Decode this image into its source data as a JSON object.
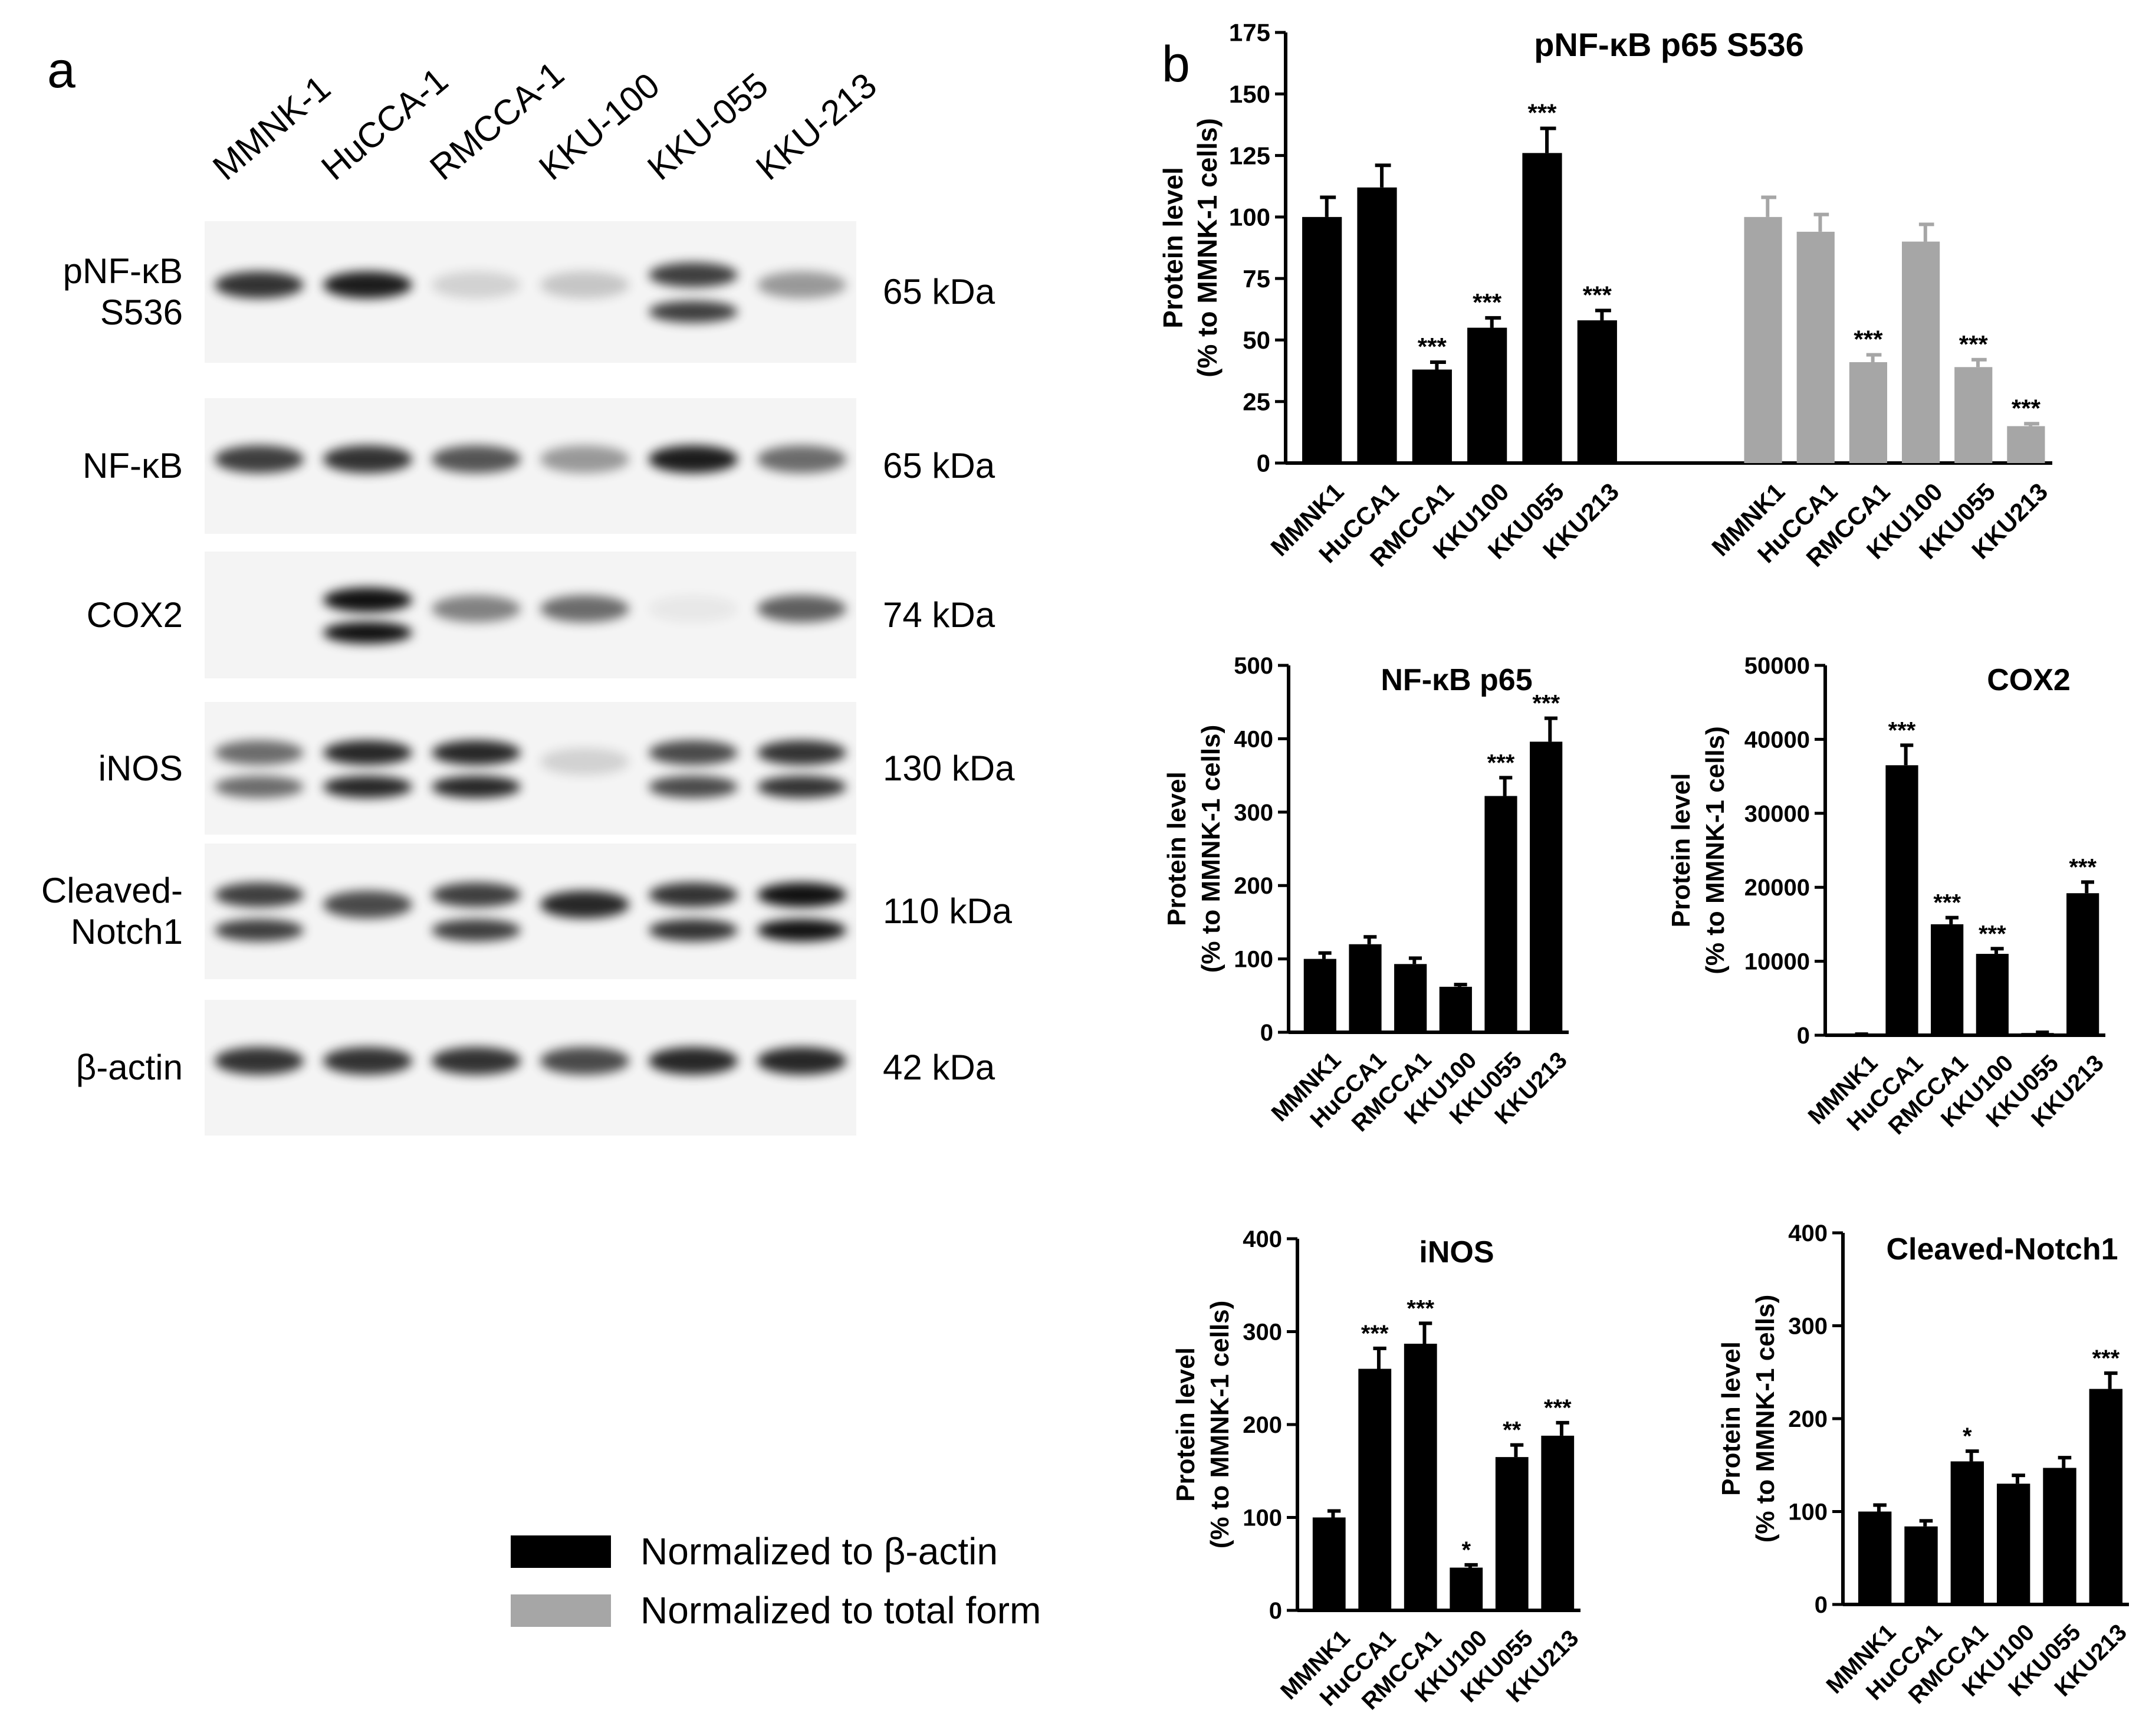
{
  "panel_a": {
    "letter": "a",
    "lanes": [
      "MMNK-1",
      "HuCCA-1",
      "RMCCA-1",
      "KKU-100",
      "KKU-055",
      "KKU-213"
    ],
    "rows": [
      {
        "label": "pNF-κB\nS536",
        "kda": "65 kDa",
        "intensity": [
          0.85,
          0.95,
          0.15,
          0.2,
          0.8,
          0.4
        ],
        "double": [
          false,
          false,
          false,
          false,
          true,
          false
        ]
      },
      {
        "label": "NF-κB",
        "kda": "65 kDa",
        "intensity": [
          0.8,
          0.85,
          0.7,
          0.4,
          0.95,
          0.6
        ],
        "double": [
          false,
          false,
          false,
          false,
          false,
          false
        ]
      },
      {
        "label": "COX2",
        "kda": "74 kDa",
        "intensity": [
          0.0,
          1.0,
          0.5,
          0.6,
          0.05,
          0.65
        ],
        "double": [
          false,
          true,
          false,
          false,
          false,
          false
        ]
      },
      {
        "label": "iNOS",
        "kda": "130 kDa",
        "intensity": [
          0.6,
          0.9,
          0.9,
          0.15,
          0.75,
          0.85
        ],
        "double": [
          true,
          true,
          true,
          false,
          true,
          true
        ]
      },
      {
        "label": "Cleaved-\nNotch1",
        "kda": "110 kDa",
        "intensity": [
          0.8,
          0.75,
          0.8,
          0.9,
          0.85,
          1.0
        ],
        "double": [
          true,
          false,
          true,
          false,
          true,
          true
        ]
      },
      {
        "label": "β-actin",
        "kda": "42 kDa",
        "intensity": [
          0.85,
          0.85,
          0.85,
          0.75,
          0.9,
          0.9
        ],
        "double": [
          false,
          false,
          false,
          false,
          false,
          false
        ]
      }
    ]
  },
  "panel_b_letter": "b",
  "ylabel_line1": "Protein level",
  "ylabel_line2": "(% to MMNK-1 cells)",
  "colors": {
    "beta_actin": "#000000",
    "total_form": "#a6a6a6"
  },
  "legend": [
    {
      "label": "Normalized to β-actin",
      "color": "#000000"
    },
    {
      "label": "Normalized  to total form",
      "color": "#a6a6a6"
    }
  ],
  "chart_data": [
    {
      "type": "bar",
      "title": "pNF-κB p65 S536",
      "categories": [
        "MMNK1",
        "HuCCA1",
        "RMCCA1",
        "KKU100",
        "KKU055",
        "KKU213"
      ],
      "series": [
        {
          "name": "Normalized to β-actin",
          "color": "#000000",
          "values": [
            100,
            112,
            38,
            55,
            126,
            58
          ],
          "errors": [
            8,
            9,
            3,
            4,
            10,
            4
          ],
          "sig": [
            "",
            "",
            "***",
            "***",
            "***",
            "***"
          ]
        },
        {
          "name": "Normalized  to total form",
          "color": "#a6a6a6",
          "values": [
            100,
            94,
            41,
            90,
            39,
            15
          ],
          "errors": [
            8,
            7,
            3,
            7,
            3,
            1
          ],
          "sig": [
            "",
            "",
            "***",
            "",
            "***",
            "***"
          ]
        }
      ],
      "ylim": [
        0,
        175
      ],
      "yticks": [
        0,
        25,
        50,
        75,
        100,
        125,
        150,
        175
      ]
    },
    {
      "type": "bar",
      "title": "NF-κB p65",
      "categories": [
        "MMNK1",
        "HuCCA1",
        "RMCCA1",
        "KKU100",
        "KKU055",
        "KKU213"
      ],
      "series": [
        {
          "name": "Normalized to β-actin",
          "color": "#000000",
          "values": [
            100,
            120,
            93,
            62,
            322,
            396
          ],
          "errors": [
            8,
            10,
            8,
            3,
            25,
            32
          ],
          "sig": [
            "",
            "",
            "",
            "",
            "***",
            "***"
          ]
        }
      ],
      "ylim": [
        0,
        500
      ],
      "yticks": [
        0,
        100,
        200,
        300,
        400,
        500
      ]
    },
    {
      "type": "bar",
      "title": "COX2",
      "categories": [
        "MMNK1",
        "HuCCA1",
        "RMCCA1",
        "KKU100",
        "KKU055",
        "KKU213"
      ],
      "series": [
        {
          "name": "Normalized to β-actin",
          "color": "#000000",
          "values": [
            100,
            36500,
            15000,
            11000,
            300,
            19200
          ],
          "errors": [
            50,
            2700,
            900,
            700,
            100,
            1500
          ],
          "sig": [
            "",
            "***",
            "***",
            "***",
            "",
            "***"
          ]
        }
      ],
      "ylim": [
        0,
        50000
      ],
      "yticks": [
        0,
        10000,
        20000,
        30000,
        40000,
        50000
      ]
    },
    {
      "type": "bar",
      "title": "iNOS",
      "categories": [
        "MMNK1",
        "HuCCA1",
        "RMCCA1",
        "KKU100",
        "KKU055",
        "KKU213"
      ],
      "series": [
        {
          "name": "Normalized to β-actin",
          "color": "#000000",
          "values": [
            100,
            260,
            287,
            46,
            165,
            188
          ],
          "errors": [
            7,
            22,
            22,
            3,
            13,
            14
          ],
          "sig": [
            "",
            "***",
            "***",
            "*",
            "**",
            "***"
          ]
        }
      ],
      "ylim": [
        0,
        400
      ],
      "yticks": [
        0,
        100,
        200,
        300,
        400
      ]
    },
    {
      "type": "bar",
      "title": "Cleaved-Notch1",
      "categories": [
        "MMNK1",
        "HuCCA1",
        "RMCCA1",
        "KKU100",
        "KKU055",
        "KKU213"
      ],
      "series": [
        {
          "name": "Normalized to β-actin",
          "color": "#000000",
          "values": [
            100,
            84,
            154,
            130,
            147,
            232
          ],
          "errors": [
            7,
            6,
            11,
            9,
            11,
            17
          ],
          "sig": [
            "",
            "",
            "*",
            "",
            "",
            "***"
          ]
        }
      ],
      "ylim": [
        0,
        400
      ],
      "yticks": [
        0,
        100,
        200,
        300,
        400
      ]
    }
  ]
}
